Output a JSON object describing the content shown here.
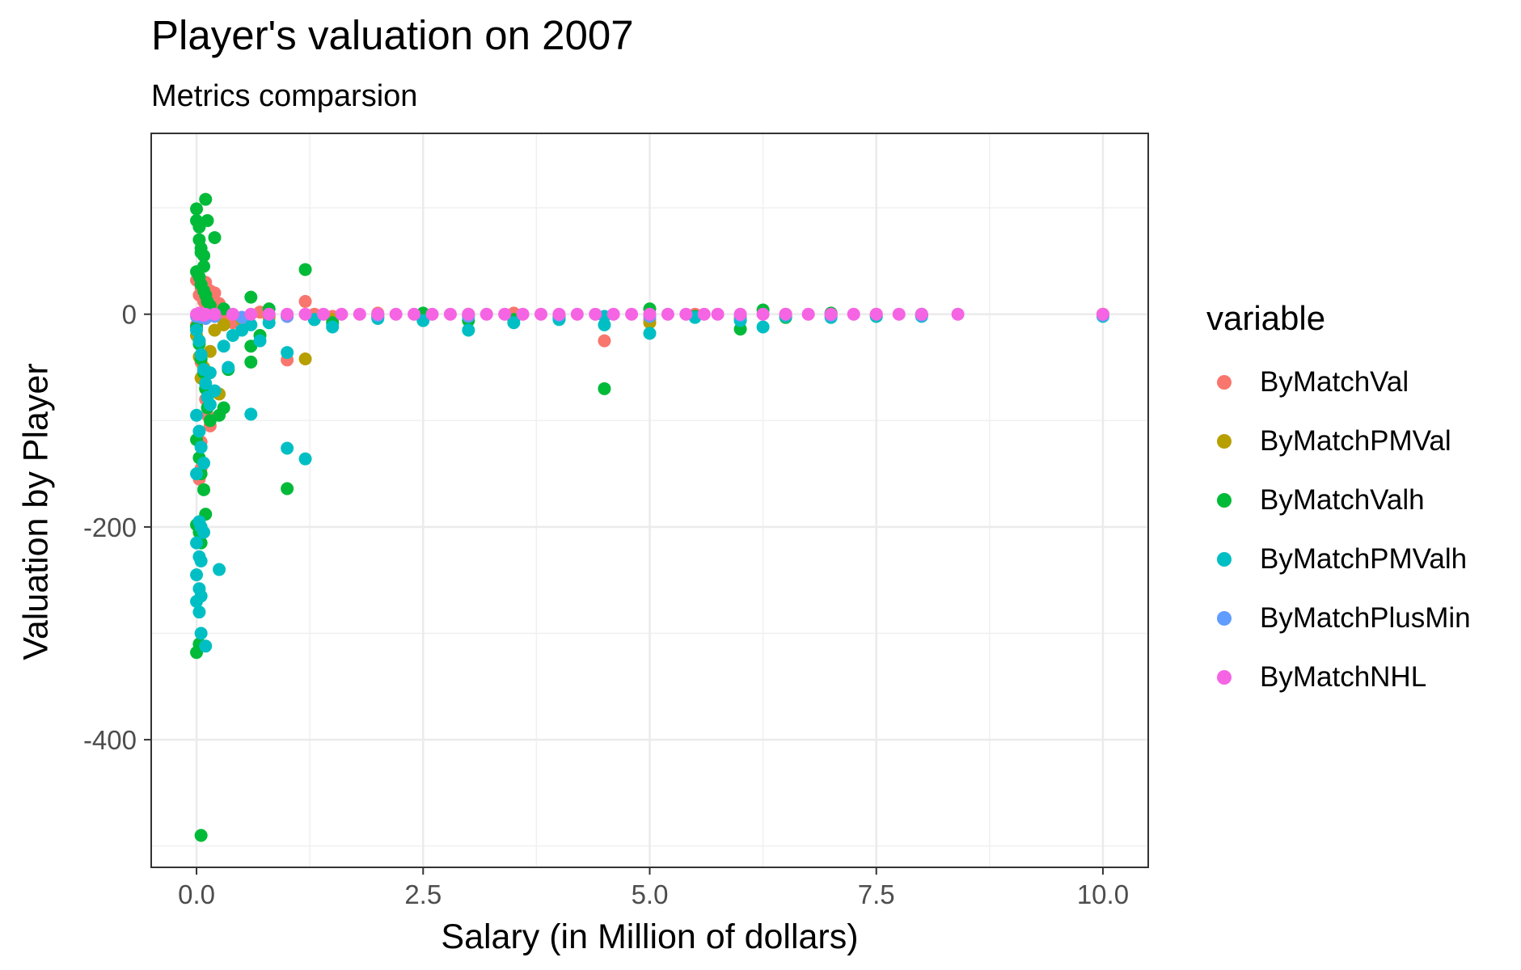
{
  "chart_data": {
    "type": "scatter",
    "title": "Player's valuation on 2007",
    "subtitle": "Metrics comparsion",
    "xlabel": "Salary (in Million of dollars)",
    "ylabel": "Valuation by Player",
    "xlim": [
      -0.5,
      10.5
    ],
    "ylim": [
      -520,
      170
    ],
    "x_ticks": [
      0.0,
      2.5,
      5.0,
      7.5,
      10.0
    ],
    "x_tick_labels": [
      "0.0",
      "2.5",
      "5.0",
      "7.5",
      "10.0"
    ],
    "y_ticks": [
      -400,
      -200,
      0
    ],
    "y_tick_labels": [
      "-400",
      "-200",
      "0"
    ],
    "grid": true,
    "legend": {
      "title": "variable",
      "position": "right"
    },
    "series": [
      {
        "name": "ByMatchVal",
        "color": "#F8766D",
        "points": [
          [
            0.0,
            32
          ],
          [
            0.03,
            18
          ],
          [
            0.05,
            25
          ],
          [
            0.08,
            12
          ],
          [
            0.1,
            30
          ],
          [
            0.12,
            15
          ],
          [
            0.15,
            22
          ],
          [
            0.2,
            20
          ],
          [
            0.25,
            10
          ],
          [
            0.0,
            -10
          ],
          [
            0.03,
            -25
          ],
          [
            0.05,
            -45
          ],
          [
            0.08,
            -60
          ],
          [
            0.1,
            -80
          ],
          [
            0.12,
            -95
          ],
          [
            0.15,
            -105
          ],
          [
            0.05,
            -120
          ],
          [
            0.05,
            -145
          ],
          [
            0.03,
            -155
          ],
          [
            0.3,
            -5
          ],
          [
            0.4,
            -8
          ],
          [
            0.5,
            -3
          ],
          [
            0.7,
            2
          ],
          [
            0.8,
            -1
          ],
          [
            1.0,
            -43
          ],
          [
            1.2,
            12
          ],
          [
            1.3,
            0
          ],
          [
            1.5,
            -2
          ],
          [
            2.0,
            1
          ],
          [
            2.5,
            -1
          ],
          [
            3.0,
            0
          ],
          [
            3.5,
            1
          ],
          [
            4.0,
            -2
          ],
          [
            4.5,
            -25
          ],
          [
            5.0,
            -5
          ],
          [
            5.5,
            0
          ],
          [
            6.0,
            -3
          ],
          [
            6.5,
            0
          ],
          [
            7.0,
            1
          ],
          [
            7.5,
            0
          ],
          [
            8.0,
            -1
          ],
          [
            10.0,
            0
          ]
        ]
      },
      {
        "name": "ByMatchPMVal",
        "color": "#B79F00",
        "points": [
          [
            0.0,
            -20
          ],
          [
            0.03,
            -40
          ],
          [
            0.05,
            -60
          ],
          [
            0.08,
            -50
          ],
          [
            0.1,
            -70
          ],
          [
            0.15,
            -35
          ],
          [
            0.2,
            -15
          ],
          [
            0.25,
            -75
          ],
          [
            0.3,
            -10
          ],
          [
            0.5,
            -5
          ],
          [
            0.8,
            -3
          ],
          [
            1.0,
            -2
          ],
          [
            1.2,
            -42
          ],
          [
            1.5,
            -5
          ],
          [
            2.0,
            -2
          ],
          [
            3.0,
            -1
          ],
          [
            4.0,
            -3
          ],
          [
            5.0,
            -8
          ],
          [
            6.0,
            -4
          ],
          [
            7.0,
            -2
          ],
          [
            8.0,
            -1
          ],
          [
            10.0,
            0
          ]
        ]
      },
      {
        "name": "ByMatchValh",
        "color": "#00BA38",
        "points": [
          [
            0.0,
            99
          ],
          [
            0.0,
            88
          ],
          [
            0.03,
            70
          ],
          [
            0.05,
            62
          ],
          [
            0.08,
            55
          ],
          [
            0.1,
            108
          ],
          [
            0.12,
            88
          ],
          [
            0.03,
            82
          ],
          [
            0.05,
            58
          ],
          [
            0.08,
            45
          ],
          [
            0.0,
            40
          ],
          [
            0.03,
            35
          ],
          [
            0.05,
            28
          ],
          [
            0.08,
            22
          ],
          [
            0.1,
            18
          ],
          [
            0.12,
            12
          ],
          [
            0.15,
            8
          ],
          [
            0.2,
            72
          ],
          [
            0.3,
            5
          ],
          [
            0.0,
            -12
          ],
          [
            0.03,
            -28
          ],
          [
            0.05,
            -42
          ],
          [
            0.08,
            -55
          ],
          [
            0.1,
            -70
          ],
          [
            0.12,
            -88
          ],
          [
            0.15,
            -100
          ],
          [
            0.0,
            -118
          ],
          [
            0.03,
            -135
          ],
          [
            0.05,
            -150
          ],
          [
            0.08,
            -165
          ],
          [
            0.1,
            -188
          ],
          [
            0.0,
            -198
          ],
          [
            0.03,
            -205
          ],
          [
            0.05,
            -215
          ],
          [
            0.0,
            -318
          ],
          [
            0.03,
            -310
          ],
          [
            0.05,
            -490
          ],
          [
            0.25,
            -95
          ],
          [
            0.3,
            -88
          ],
          [
            0.35,
            -52
          ],
          [
            0.6,
            -45
          ],
          [
            0.6,
            -30
          ],
          [
            0.6,
            16
          ],
          [
            0.7,
            -20
          ],
          [
            0.8,
            5
          ],
          [
            1.0,
            -164
          ],
          [
            1.2,
            42
          ],
          [
            1.3,
            -5
          ],
          [
            1.5,
            -8
          ],
          [
            2.0,
            -3
          ],
          [
            2.5,
            1
          ],
          [
            3.0,
            -6
          ],
          [
            3.5,
            -5
          ],
          [
            4.0,
            -3
          ],
          [
            4.5,
            -70
          ],
          [
            5.0,
            5
          ],
          [
            5.5,
            -2
          ],
          [
            6.0,
            -14
          ],
          [
            6.25,
            4
          ],
          [
            6.5,
            -3
          ],
          [
            7.0,
            1
          ],
          [
            7.5,
            -2
          ],
          [
            8.0,
            0
          ]
        ]
      },
      {
        "name": "ByMatchPMValh",
        "color": "#00BFC4",
        "points": [
          [
            0.0,
            -15
          ],
          [
            0.03,
            -25
          ],
          [
            0.05,
            -38
          ],
          [
            0.08,
            -52
          ],
          [
            0.1,
            -65
          ],
          [
            0.12,
            -78
          ],
          [
            0.15,
            -85
          ],
          [
            0.0,
            -95
          ],
          [
            0.03,
            -110
          ],
          [
            0.05,
            -125
          ],
          [
            0.08,
            -140
          ],
          [
            0.0,
            -150
          ],
          [
            0.03,
            -195
          ],
          [
            0.05,
            -200
          ],
          [
            0.08,
            -205
          ],
          [
            0.0,
            -215
          ],
          [
            0.03,
            -228
          ],
          [
            0.05,
            -232
          ],
          [
            0.0,
            -245
          ],
          [
            0.03,
            -258
          ],
          [
            0.05,
            -265
          ],
          [
            0.0,
            -270
          ],
          [
            0.03,
            -280
          ],
          [
            0.05,
            -300
          ],
          [
            0.1,
            -312
          ],
          [
            0.15,
            -55
          ],
          [
            0.2,
            -72
          ],
          [
            0.25,
            -240
          ],
          [
            0.3,
            -30
          ],
          [
            0.35,
            -50
          ],
          [
            0.4,
            -20
          ],
          [
            0.5,
            -15
          ],
          [
            0.6,
            -94
          ],
          [
            0.6,
            -10
          ],
          [
            0.7,
            -25
          ],
          [
            0.8,
            -8
          ],
          [
            1.0,
            -36
          ],
          [
            1.0,
            -126
          ],
          [
            1.2,
            -136
          ],
          [
            1.3,
            -5
          ],
          [
            1.5,
            -12
          ],
          [
            2.0,
            -4
          ],
          [
            2.5,
            -6
          ],
          [
            3.0,
            -15
          ],
          [
            3.5,
            -8
          ],
          [
            4.0,
            -5
          ],
          [
            4.5,
            -2
          ],
          [
            4.5,
            -10
          ],
          [
            5.0,
            -18
          ],
          [
            5.5,
            -3
          ],
          [
            6.0,
            -6
          ],
          [
            6.25,
            -12
          ],
          [
            6.5,
            -2
          ],
          [
            7.0,
            -3
          ],
          [
            7.5,
            -2
          ],
          [
            8.0,
            -2
          ],
          [
            10.0,
            -2
          ]
        ]
      },
      {
        "name": "ByMatchPlusMin",
        "color": "#619CFF",
        "points": [
          [
            0.0,
            -2
          ],
          [
            0.05,
            -3
          ],
          [
            0.1,
            -4
          ],
          [
            0.2,
            -2
          ],
          [
            0.5,
            -3
          ],
          [
            1.0,
            -2
          ],
          [
            2.0,
            -1
          ],
          [
            3.0,
            -2
          ],
          [
            4.0,
            -1
          ],
          [
            5.0,
            -2
          ],
          [
            6.0,
            -1
          ],
          [
            7.0,
            -1
          ],
          [
            8.0,
            -1
          ],
          [
            10.0,
            -1
          ]
        ]
      },
      {
        "name": "ByMatchNHL",
        "color": "#F564E3",
        "points": [
          [
            0.0,
            0
          ],
          [
            0.03,
            1
          ],
          [
            0.05,
            0
          ],
          [
            0.08,
            -1
          ],
          [
            0.1,
            0
          ],
          [
            0.2,
            0
          ],
          [
            0.4,
            0
          ],
          [
            0.6,
            0
          ],
          [
            0.8,
            0
          ],
          [
            1.0,
            0
          ],
          [
            1.2,
            0
          ],
          [
            1.4,
            0
          ],
          [
            1.6,
            0
          ],
          [
            1.8,
            0
          ],
          [
            2.0,
            0
          ],
          [
            2.2,
            0
          ],
          [
            2.4,
            0
          ],
          [
            2.6,
            0
          ],
          [
            2.8,
            0
          ],
          [
            3.0,
            0
          ],
          [
            3.2,
            0
          ],
          [
            3.4,
            0
          ],
          [
            3.6,
            0
          ],
          [
            3.8,
            0
          ],
          [
            4.0,
            0
          ],
          [
            4.2,
            0
          ],
          [
            4.4,
            0
          ],
          [
            4.6,
            0
          ],
          [
            4.8,
            0
          ],
          [
            5.0,
            0
          ],
          [
            5.2,
            0
          ],
          [
            5.4,
            0
          ],
          [
            5.6,
            0
          ],
          [
            5.75,
            0
          ],
          [
            6.0,
            0
          ],
          [
            6.25,
            0
          ],
          [
            6.5,
            0
          ],
          [
            6.75,
            0
          ],
          [
            7.0,
            0
          ],
          [
            7.25,
            0
          ],
          [
            7.5,
            0
          ],
          [
            7.75,
            0
          ],
          [
            8.0,
            0
          ],
          [
            8.4,
            0
          ],
          [
            10.0,
            0
          ]
        ]
      }
    ]
  }
}
